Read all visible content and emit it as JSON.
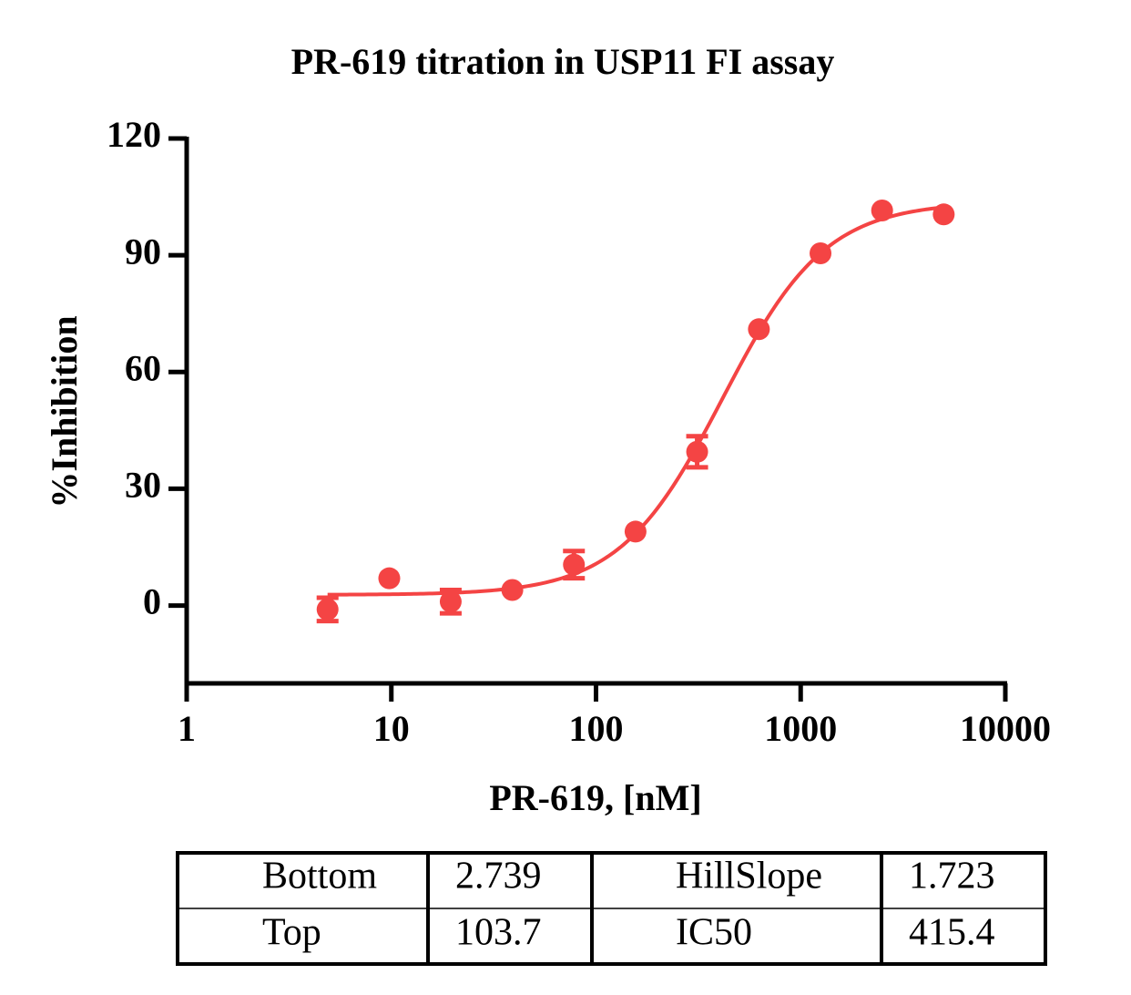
{
  "chart_data": {
    "type": "scatter",
    "title": "PR-619 titration in USP11 FI assay",
    "x_label": "PR-619,  [nM]",
    "y_label": "%Inhibition",
    "x": [
      4.88,
      9.77,
      19.5,
      39,
      78,
      156,
      312,
      625,
      1250,
      2500,
      5000
    ],
    "series": [
      {
        "name": "PR-619",
        "color": "#f44444",
        "values": [
          -1,
          7,
          1,
          4,
          10.5,
          19,
          39.5,
          71,
          90.5,
          101.5,
          100.5
        ],
        "errors": [
          3,
          0,
          3,
          0,
          3.5,
          0,
          4,
          0,
          0,
          0,
          0
        ]
      }
    ],
    "xlim": [
      1,
      10000
    ],
    "xticks": [
      1,
      10,
      100,
      1000,
      10000
    ],
    "log_x": true,
    "ylim": [
      -20,
      120
    ],
    "yticks": [
      0,
      30,
      60,
      90,
      120
    ]
  },
  "fit_table": {
    "rows": [
      [
        "Bottom",
        2.739,
        "HillSlope",
        1.723
      ],
      [
        "Top",
        103.7,
        "IC50",
        415.4
      ]
    ]
  }
}
